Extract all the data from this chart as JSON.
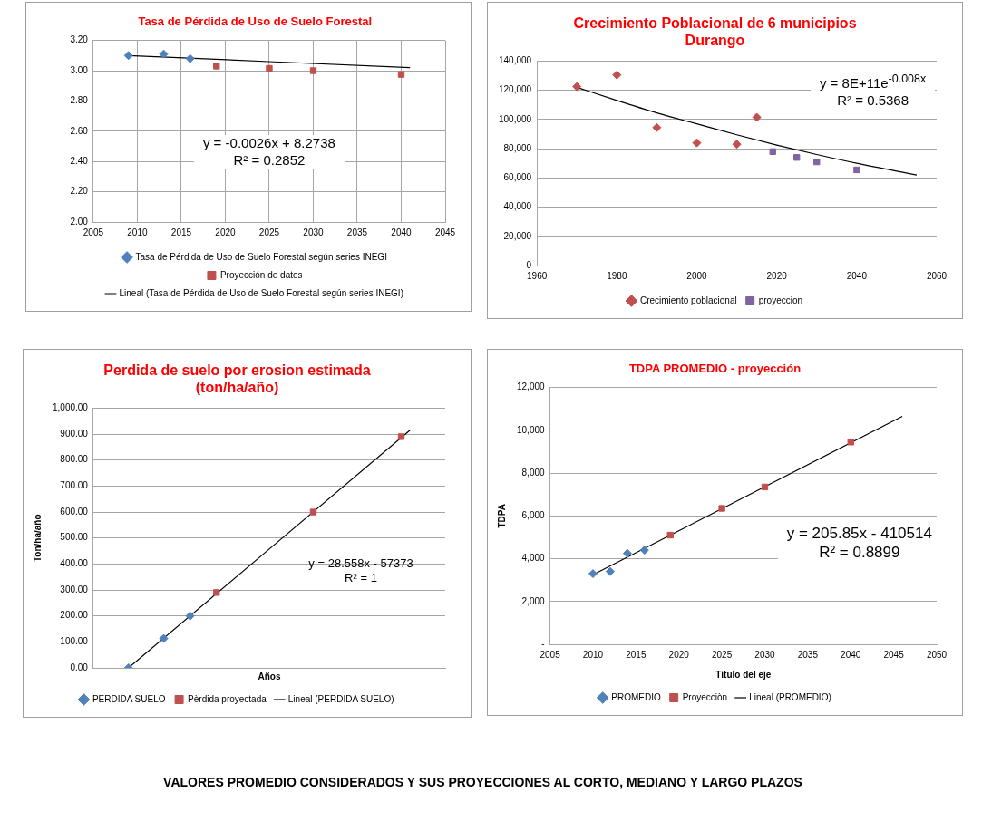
{
  "chart_data": [
    {
      "type": "scatter",
      "title": "Tasa de Pérdida de Uso de Suelo Forestal",
      "xlim": [
        2005,
        2045
      ],
      "xticks": [
        2005,
        2010,
        2015,
        2020,
        2025,
        2030,
        2035,
        2040,
        2045
      ],
      "ylim": [
        2.0,
        3.2
      ],
      "yticks": [
        {
          "value": 2.0,
          "label": "2.00"
        },
        {
          "value": 2.2,
          "label": "2.20"
        },
        {
          "value": 2.4,
          "label": "2.40"
        },
        {
          "value": 2.6,
          "label": "2.60"
        },
        {
          "value": 2.8,
          "label": "2.80"
        },
        {
          "value": 3.0,
          "label": "3.00"
        },
        {
          "value": 3.2,
          "label": "3.20"
        }
      ],
      "grid": true,
      "legend": "bottom",
      "annotations": [
        "y = -0.0026x + 8.2738",
        "R² = 0.2852"
      ],
      "series": [
        {
          "name": "Tasa de Pérdida de Uso de Suelo Forestal según series INEGI",
          "color": "#4f81bd",
          "marker": "diamond",
          "x": [
            2009,
            2013,
            2016
          ],
          "values": [
            3.1,
            3.11,
            3.08
          ]
        },
        {
          "name": "Proyección de datos",
          "color": "#c0504d",
          "marker": "square",
          "x": [
            2019,
            2025,
            2030,
            2040
          ],
          "values": [
            3.03,
            3.015,
            3.0,
            2.975
          ]
        },
        {
          "name": "Lineal (Tasa de Pérdida de Uso de Suelo Forestal según series INEGI)",
          "type": "line",
          "color": "#000000",
          "marker": "none",
          "x": [
            2009,
            2041
          ],
          "values": [
            3.1,
            3.02
          ]
        }
      ]
    },
    {
      "type": "scatter",
      "title": "Crecimiento Poblacional de 6 municipios Durango",
      "xlim": [
        1960,
        2060
      ],
      "xticks": [
        1960,
        1980,
        2000,
        2020,
        2040,
        2060
      ],
      "ylim": [
        0,
        140000
      ],
      "yticks": [
        0,
        {
          "value": 20000,
          "label": "20,000"
        },
        {
          "value": 40000,
          "label": "40,000"
        },
        {
          "value": 60000,
          "label": "60,000"
        },
        {
          "value": 80000,
          "label": "80,000"
        },
        {
          "value": 100000,
          "label": "100,000"
        },
        {
          "value": 120000,
          "label": "120,000"
        },
        {
          "value": 140000,
          "label": "140,000"
        }
      ],
      "grid": "y",
      "legend": "bottom",
      "annotations": [
        "y = 8E+11e$^{-0.008x}$",
        "R² = 0.5368"
      ],
      "series": [
        {
          "name": "Crecimiento poblacional",
          "color": "#c0504d",
          "marker": "diamond",
          "x": [
            1970,
            1980,
            1990,
            2000,
            2010,
            2015
          ],
          "values": [
            122500,
            130500,
            94500,
            84000,
            83000,
            101500
          ]
        },
        {
          "name": "proyeccion",
          "color": "#8064a2",
          "marker": "square",
          "x": [
            2019,
            2025,
            2030,
            2040
          ],
          "values": [
            78000,
            74000,
            71000,
            65500
          ]
        },
        {
          "type": "line",
          "color": "#000000",
          "marker": "none",
          "x": [
            1970,
            1980,
            1990,
            2000,
            2010,
            2020,
            2030,
            2040,
            2055
          ],
          "values": [
            122000,
            113000,
            104500,
            97000,
            89500,
            82500,
            76000,
            70000,
            62000
          ]
        }
      ]
    },
    {
      "type": "scatter",
      "title": "Perdida de suelo por erosion estimada (ton/ha/año)",
      "xlabel": "Años",
      "ylabel": "Ton/ha/año",
      "xlim": [
        2005,
        2045
      ],
      "ylim": [
        0,
        1000
      ],
      "yticks": [
        {
          "value": 0,
          "label": "0.00"
        },
        {
          "value": 100,
          "label": "100.00"
        },
        {
          "value": 200,
          "label": "200.00"
        },
        {
          "value": 300,
          "label": "300.00"
        },
        {
          "value": 400,
          "label": "400.00"
        },
        {
          "value": 500,
          "label": "500.00"
        },
        {
          "value": 600,
          "label": "600.00"
        },
        {
          "value": 700,
          "label": "700.00"
        },
        {
          "value": 800,
          "label": "800.00"
        },
        {
          "value": 900,
          "label": "900.00"
        },
        {
          "value": 1000,
          "label": "1,000.00"
        }
      ],
      "tick_labels": "y",
      "grid": "y",
      "legend": "bottom",
      "annotations": [
        "y = 28.558x - 57373",
        "R² = 1"
      ],
      "series": [
        {
          "name": "PERDIDA SUELO",
          "color": "#4f81bd",
          "marker": "diamond",
          "x": [
            2009,
            2013,
            2016
          ],
          "values": [
            0,
            113,
            200
          ]
        },
        {
          "name": "Pèrdida proyectada",
          "color": "#c0504d",
          "marker": "square",
          "x": [
            2019,
            2030,
            2040
          ],
          "values": [
            290,
            600,
            890
          ]
        },
        {
          "name": "Lineal (PERDIDA SUELO)",
          "type": "line",
          "color": "#000000",
          "marker": "none",
          "x": [
            2009,
            2041
          ],
          "values": [
            0,
            915
          ]
        }
      ]
    },
    {
      "type": "scatter",
      "title": "TDPA PROMEDIO - proyección",
      "xlabel": "Título del eje",
      "ylabel": "TDPA",
      "xlim": [
        2005,
        2050
      ],
      "xticks": [
        2005,
        2010,
        2015,
        2020,
        2025,
        2030,
        2035,
        2040,
        2045,
        2050
      ],
      "ylim": [
        0,
        12000
      ],
      "yticks": [
        {
          "value": 0,
          "label": "-"
        },
        {
          "value": 2000,
          "label": "2,000"
        },
        {
          "value": 4000,
          "label": "4,000"
        },
        {
          "value": 6000,
          "label": "6,000"
        },
        {
          "value": 8000,
          "label": "8,000"
        },
        {
          "value": 10000,
          "label": "10,000"
        },
        {
          "value": 12000,
          "label": "12,000"
        }
      ],
      "grid": "y",
      "legend": "bottom",
      "annotations": [
        "y = 205.85x - 410514",
        "R² = 0.8899"
      ],
      "series": [
        {
          "name": "PROMEDIO",
          "color": "#4f81bd",
          "marker": "diamond",
          "x": [
            2010,
            2012,
            2014,
            2016
          ],
          "values": [
            3300,
            3400,
            4250,
            4400
          ]
        },
        {
          "name": "Proyecciòn",
          "color": "#c0504d",
          "marker": "square",
          "x": [
            2019,
            2025,
            2030,
            2040
          ],
          "values": [
            5100,
            6350,
            7350,
            9450
          ]
        },
        {
          "name": "Lineal (PROMEDIO)",
          "type": "line",
          "color": "#000000",
          "marker": "none",
          "x": [
            2010,
            2046
          ],
          "values": [
            3250,
            10650
          ]
        }
      ]
    },
    {
      "type": "other",
      "title": "VALORES PROMEDIO CONSIDERADOS Y SUS PROYECCIONES AL CORTO, MEDIANO Y LARGO PLAZOS"
    }
  ]
}
